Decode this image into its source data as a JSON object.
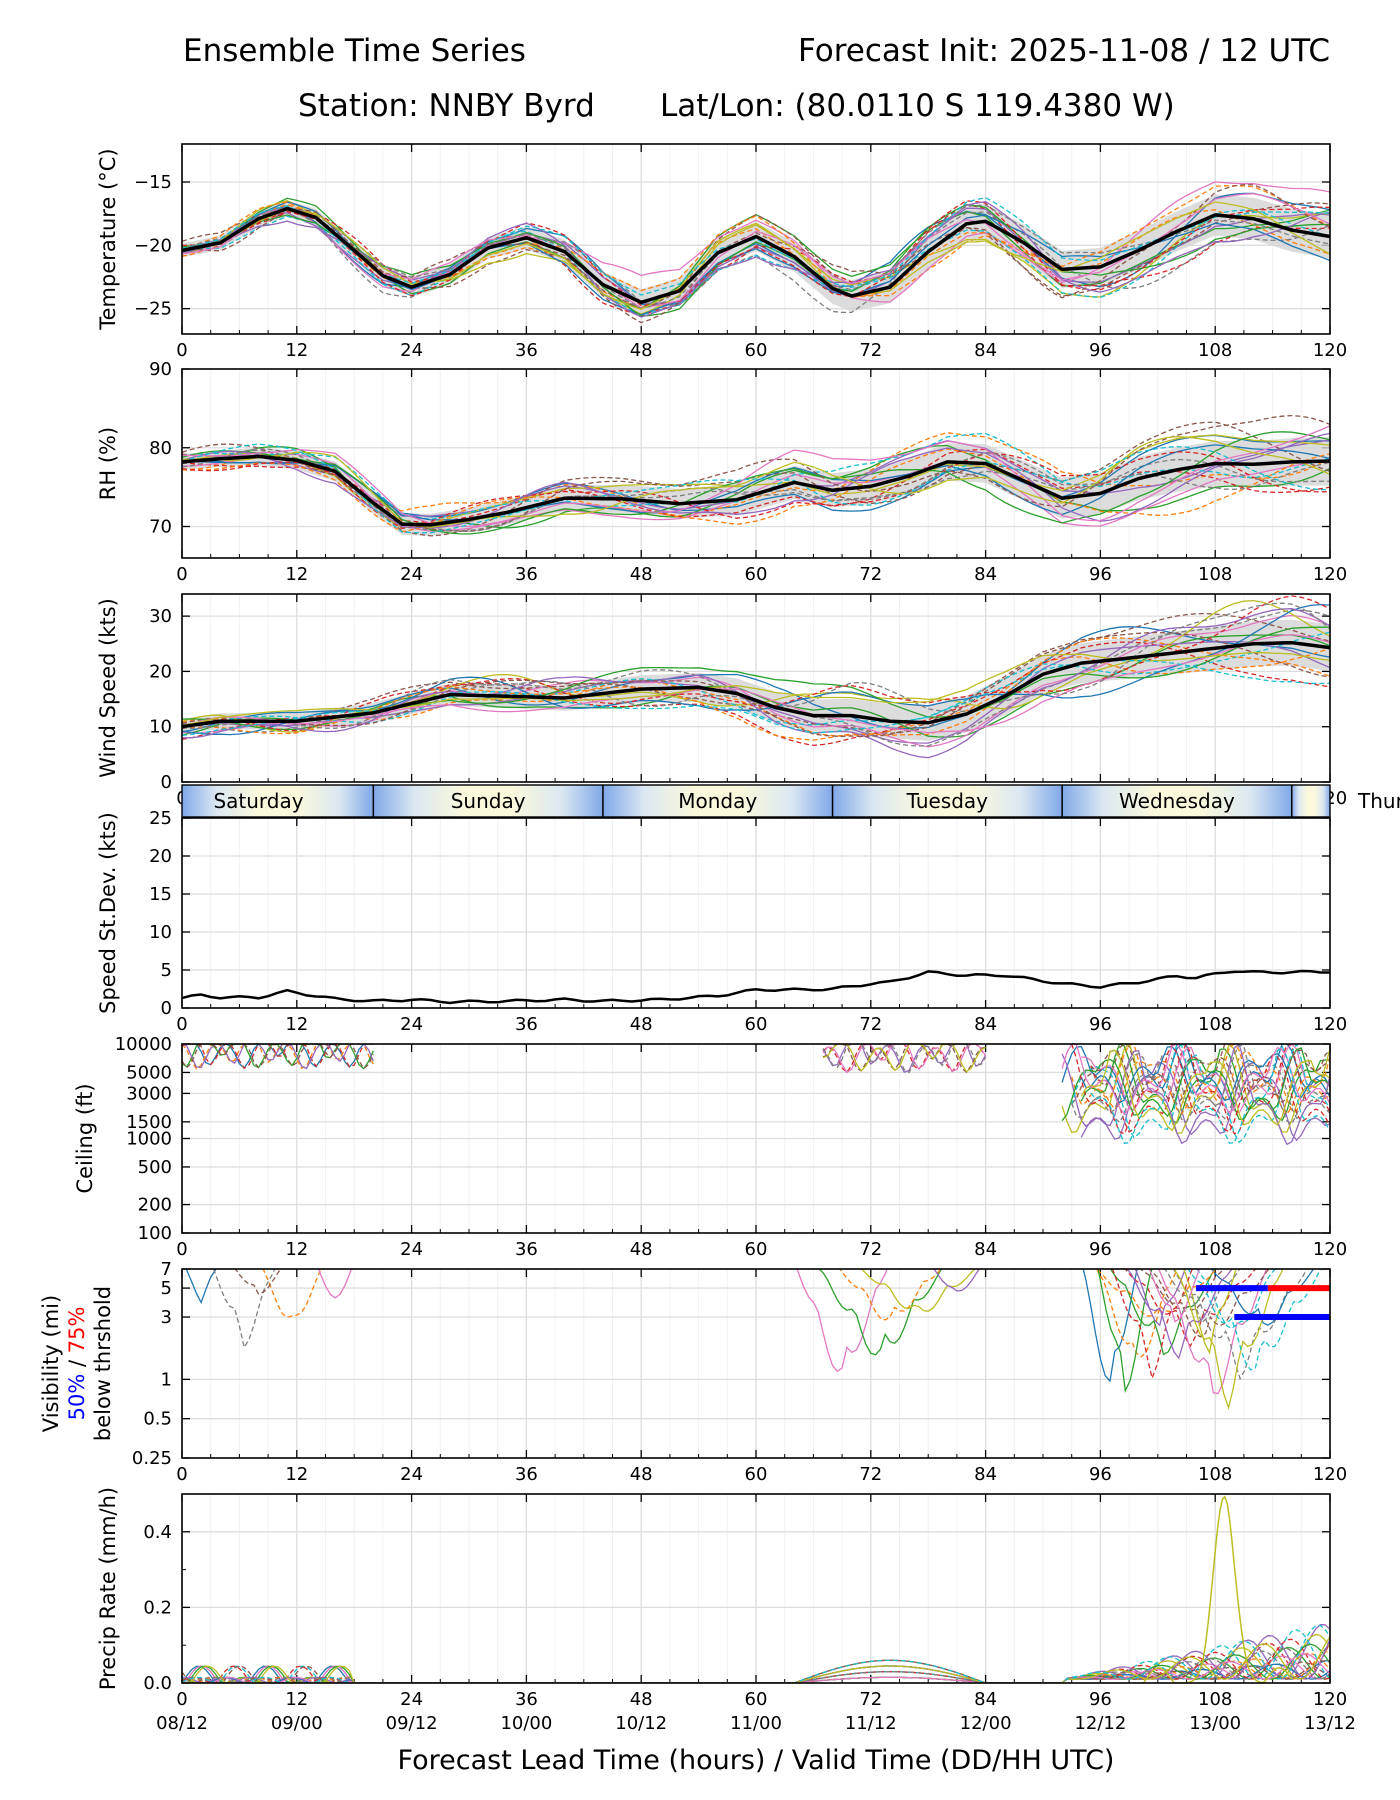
{
  "header": {
    "title": "Ensemble Time Series",
    "init": "Forecast Init: 2025-11-08 / 12 UTC",
    "station": "Station: NNBY Byrd",
    "latlon": "Lat/Lon: (80.0110 S 119.4380 W)"
  },
  "chart_data": {
    "type": "line",
    "x_range": [
      0,
      120
    ],
    "x_ticks": [
      0,
      12,
      24,
      36,
      48,
      60,
      72,
      84,
      96,
      108,
      120
    ],
    "x_tick_labels": [
      "0",
      "12",
      "24",
      "36",
      "48",
      "60",
      "72",
      "84",
      "96",
      "108",
      "120"
    ],
    "valid_time_labels": [
      "08/12",
      "09/00",
      "09/12",
      "10/00",
      "10/12",
      "11/00",
      "11/12",
      "12/00",
      "12/12",
      "13/00",
      "13/12"
    ],
    "xlabel": "Forecast Lead Time (hours) / Valid Time (DD/HH UTC)",
    "members": 20,
    "member_colors": [
      "#1f77b4",
      "#ff7f0e",
      "#2ca02c",
      "#d62728",
      "#9467bd",
      "#8c564b",
      "#e377c2",
      "#7f7f7f",
      "#bcbd22",
      "#17becf"
    ],
    "days": [
      "Saturday",
      "Sunday",
      "Monday",
      "Tuesday",
      "Wednesday",
      "Thursday"
    ],
    "day_boundaries_hours": [
      20,
      44,
      68,
      92,
      116
    ],
    "panels": [
      {
        "id": "temperature",
        "ylabel": "Temperature (°C)",
        "ylim": [
          -27,
          -12
        ],
        "yticks": [
          -25,
          -20,
          -15
        ],
        "ytick_labels": [
          "−25",
          "−20",
          "−15"
        ],
        "spread": 0.9,
        "mean": [
          [
            0,
            -20.4
          ],
          [
            4,
            -19.8
          ],
          [
            8,
            -17.9
          ],
          [
            11,
            -17.1
          ],
          [
            14,
            -17.8
          ],
          [
            18,
            -20.4
          ],
          [
            21,
            -22.4
          ],
          [
            24,
            -23.3
          ],
          [
            28,
            -22.3
          ],
          [
            32,
            -20.2
          ],
          [
            36,
            -19.4
          ],
          [
            40,
            -20.5
          ],
          [
            44,
            -23.1
          ],
          [
            48,
            -24.5
          ],
          [
            52,
            -23.6
          ],
          [
            56,
            -20.6
          ],
          [
            60,
            -19.3
          ],
          [
            64,
            -20.9
          ],
          [
            68,
            -23.4
          ],
          [
            70,
            -24
          ],
          [
            74,
            -23.3
          ],
          [
            78,
            -20.5
          ],
          [
            82,
            -18.3
          ],
          [
            84,
            -18.1
          ],
          [
            88,
            -19.8
          ],
          [
            92,
            -21.9
          ],
          [
            96,
            -21.7
          ],
          [
            100,
            -20.4
          ],
          [
            104,
            -18.9
          ],
          [
            108,
            -17.6
          ],
          [
            112,
            -17.9
          ],
          [
            116,
            -18.8
          ],
          [
            120,
            -19.3
          ]
        ]
      },
      {
        "id": "rh",
        "ylabel": "RH (%)",
        "ylim": [
          66,
          90
        ],
        "yticks": [
          70,
          80,
          90
        ],
        "ytick_labels": [
          "70",
          "80",
          "90"
        ],
        "spread": 1.6,
        "mean": [
          [
            0,
            78.2
          ],
          [
            4,
            78.6
          ],
          [
            8,
            78.9
          ],
          [
            12,
            78.4
          ],
          [
            16,
            77
          ],
          [
            20,
            73
          ],
          [
            23,
            70.3
          ],
          [
            26,
            70.2
          ],
          [
            30,
            70.9
          ],
          [
            34,
            71.8
          ],
          [
            40,
            73.6
          ],
          [
            46,
            73.5
          ],
          [
            52,
            72.9
          ],
          [
            58,
            73.4
          ],
          [
            64,
            75.6
          ],
          [
            68,
            74.6
          ],
          [
            72,
            75.1
          ],
          [
            76,
            76.4
          ],
          [
            80,
            78.2
          ],
          [
            84,
            78
          ],
          [
            88,
            75.8
          ],
          [
            92,
            73.6
          ],
          [
            96,
            74.2
          ],
          [
            100,
            76.1
          ],
          [
            104,
            77.2
          ],
          [
            108,
            78
          ],
          [
            112,
            77.9
          ],
          [
            116,
            78.2
          ],
          [
            120,
            78.3
          ]
        ]
      },
      {
        "id": "wind",
        "ylabel": "Wind Speed (kts)",
        "ylim": [
          0,
          34
        ],
        "yticks": [
          0,
          10,
          20,
          30
        ],
        "ytick_labels": [
          "0",
          "10",
          "20",
          "30"
        ],
        "spread": 2.2,
        "mean": [
          [
            0,
            10
          ],
          [
            4,
            11
          ],
          [
            12,
            11
          ],
          [
            20,
            12.5
          ],
          [
            24,
            14.2
          ],
          [
            28,
            15.8
          ],
          [
            36,
            15.4
          ],
          [
            40,
            15.2
          ],
          [
            44,
            16
          ],
          [
            48,
            16.8
          ],
          [
            54,
            17.1
          ],
          [
            58,
            16
          ],
          [
            62,
            13.5
          ],
          [
            66,
            12
          ],
          [
            70,
            12
          ],
          [
            74,
            11
          ],
          [
            78,
            10.7
          ],
          [
            82,
            12.3
          ],
          [
            86,
            15.5
          ],
          [
            90,
            19.5
          ],
          [
            94,
            21.5
          ],
          [
            100,
            22.6
          ],
          [
            108,
            24.2
          ],
          [
            112,
            25
          ],
          [
            116,
            25.2
          ],
          [
            120,
            24.3
          ]
        ]
      },
      {
        "id": "stdev",
        "ylabel": "Speed St.Dev. (kts)",
        "ylim": [
          0,
          25
        ],
        "yticks": [
          0,
          5,
          10,
          15,
          20,
          25
        ],
        "ytick_labels": [
          "0",
          "5",
          "10",
          "15",
          "20",
          "25"
        ],
        "line": [
          [
            0,
            1.3
          ],
          [
            2,
            1.7
          ],
          [
            4,
            1.4
          ],
          [
            8,
            1.4
          ],
          [
            11,
            2.2
          ],
          [
            13,
            1.8
          ],
          [
            16,
            1.2
          ],
          [
            20,
            0.9
          ],
          [
            24,
            1.1
          ],
          [
            28,
            0.8
          ],
          [
            34,
            0.9
          ],
          [
            40,
            1.1
          ],
          [
            44,
            0.9
          ],
          [
            50,
            1.1
          ],
          [
            56,
            1.6
          ],
          [
            60,
            2.4
          ],
          [
            64,
            2.4
          ],
          [
            68,
            2.5
          ],
          [
            72,
            3.2
          ],
          [
            74,
            3.4
          ],
          [
            78,
            4.7
          ],
          [
            82,
            4.3
          ],
          [
            86,
            4.3
          ],
          [
            92,
            3.2
          ],
          [
            96,
            2.8
          ],
          [
            100,
            3.4
          ],
          [
            104,
            4.2
          ],
          [
            106,
            4
          ],
          [
            110,
            4.9
          ],
          [
            112,
            4.7
          ],
          [
            116,
            4.7
          ],
          [
            120,
            4.8
          ]
        ]
      },
      {
        "id": "ceiling",
        "ylabel": "Ceiling (ft)",
        "ylim": [
          100,
          10000
        ],
        "scale": "log",
        "yticks": [
          100,
          200,
          500,
          1000,
          1500,
          3000,
          5000,
          10000
        ],
        "ytick_labels": [
          "100",
          "200",
          "500",
          "1000",
          "1500",
          "3000",
          "5000",
          "10000"
        ]
      },
      {
        "id": "visibility",
        "ylabel": "Visibility (mi)",
        "ylabel_50": "50%",
        "ylabel_sep": " / ",
        "ylabel_75": "75%",
        "ylabel_line3": "below thrshold",
        "ylim": [
          0.25,
          7
        ],
        "scale": "log",
        "yticks": [
          0.25,
          0.5,
          1,
          3,
          5,
          7
        ],
        "ytick_labels": [
          "0.25",
          "0.5",
          "1",
          "3",
          "5",
          "7"
        ],
        "threshold_bars": [
          {
            "value": 5,
            "segments": [
              {
                "from": 106,
                "to": 113.5,
                "color": "#0000ff"
              },
              {
                "from": 113.5,
                "to": 120,
                "color": "#ff0000"
              }
            ]
          },
          {
            "value": 3,
            "segments": [
              {
                "from": 110,
                "to": 120,
                "color": "#0000ff"
              }
            ]
          }
        ]
      },
      {
        "id": "precip",
        "ylabel": "Precip Rate (mm/h)",
        "ylim": [
          0,
          0.5
        ],
        "yticks": [
          0.0,
          0.2,
          0.4
        ],
        "ytick_labels": [
          "0.0",
          "0.2",
          "0.4"
        ],
        "peak": {
          "hour": 109,
          "value": 0.46
        }
      }
    ]
  }
}
